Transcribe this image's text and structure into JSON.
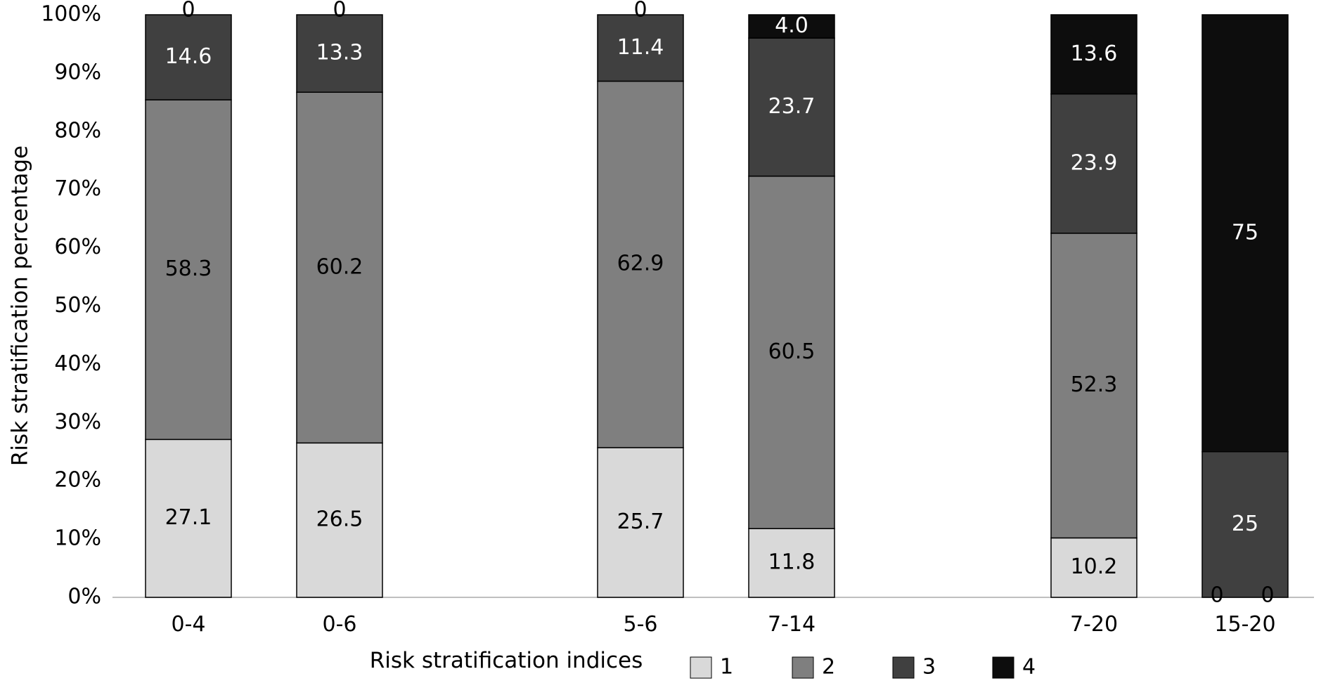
{
  "chart_data": {
    "type": "bar",
    "stacked": true,
    "percent_stacked": true,
    "xlabel": "Risk stratification indices",
    "ylabel": "Risk stratification percentage",
    "ylim": [
      0,
      100
    ],
    "y_ticks": [
      "0%",
      "10%",
      "20%",
      "30%",
      "40%",
      "50%",
      "60%",
      "70%",
      "80%",
      "90%",
      "100%"
    ],
    "categories": [
      "0-4",
      "0-6",
      "5-6",
      "7-14",
      "7-20",
      "15-20"
    ],
    "series": [
      {
        "name": "1",
        "color": "#d9d9d9",
        "label_color": "#000000",
        "values": [
          27.1,
          26.5,
          25.7,
          11.8,
          10.2,
          0
        ],
        "labels": [
          "27.1",
          "26.5",
          "25.7",
          "11.8",
          "10.2",
          "0"
        ]
      },
      {
        "name": "2",
        "color": "#7f7f7f",
        "label_color": "#000000",
        "values": [
          58.3,
          60.2,
          62.9,
          60.5,
          52.3,
          0
        ],
        "labels": [
          "58.3",
          "60.2",
          "62.9",
          "60.5",
          "52.3",
          "0"
        ]
      },
      {
        "name": "3",
        "color": "#404040",
        "label_color": "#ffffff",
        "values": [
          14.6,
          13.3,
          11.4,
          23.7,
          23.9,
          25
        ],
        "labels": [
          "14.6",
          "13.3",
          "11.4",
          "23.7",
          "23.9",
          "25"
        ]
      },
      {
        "name": "4",
        "color": "#0d0d0d",
        "label_color": "#ffffff",
        "values": [
          0,
          0,
          0,
          4.0,
          13.6,
          75
        ],
        "labels": [
          "0",
          "0",
          "0",
          "4.0",
          "13.6",
          "75"
        ]
      }
    ],
    "grid": false,
    "legend_position": "bottom",
    "legend_title": "Risk stratification indices",
    "legend_entries": [
      "1",
      "2",
      "3",
      "4"
    ]
  }
}
